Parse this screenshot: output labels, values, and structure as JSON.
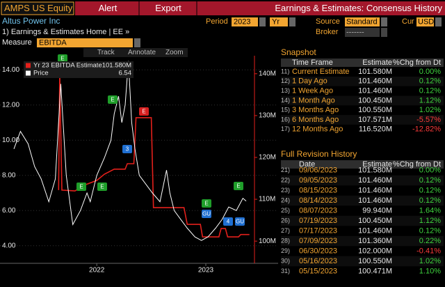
{
  "header": {
    "ticker": "AMPS US Equity",
    "tabs": [
      "Alert",
      "Export"
    ],
    "title": "Earnings & Estimates: Consensus History"
  },
  "controls": {
    "company": "Altus Power Inc",
    "period_label": "Period",
    "period": "2023",
    "period_type": "Yr",
    "source_label": "Source",
    "source": "Standard",
    "cur_label": "Cur",
    "cur": "USD",
    "link": "1) Earnings & Estimates Home | EE »",
    "broker_label": "Broker",
    "broker": "-------",
    "measure_label": "Measure",
    "measure": "EBITDA"
  },
  "toolbar": [
    "Track",
    "Annotate",
    "Zoom"
  ],
  "chart_data": {
    "type": "line",
    "grid": true,
    "xlim": [
      2021.74,
      2023.94
    ],
    "xticks": [
      {
        "value": 2022.5,
        "label": "2022"
      },
      {
        "value": 2023.5,
        "label": "2023"
      }
    ],
    "ylim": [
      3,
      14.8
    ],
    "yticks": [
      {
        "value": 4,
        "label": "4.00"
      },
      {
        "value": 6,
        "label": "6.00"
      },
      {
        "value": 8,
        "label": "8.00"
      },
      {
        "value": 10,
        "label": "10.00"
      },
      {
        "value": 12,
        "label": "12.00"
      },
      {
        "value": 14,
        "label": "14.00"
      }
    ],
    "y2lim": [
      94.7,
      144.3
    ],
    "y2ticks": [
      {
        "value": 100,
        "label": "100M"
      },
      {
        "value": 110,
        "label": "110M"
      },
      {
        "value": 120,
        "label": "120M"
      },
      {
        "value": 130,
        "label": "130M"
      },
      {
        "value": 140,
        "label": "140M"
      }
    ],
    "series": [
      {
        "name": "Yr 23 EBITDA Estimate",
        "last_label": "101.580M",
        "color": "#e3201b",
        "axis": "y2",
        "x": [
          2022.15,
          2022.16,
          2022.18,
          2022.3,
          2022.4,
          2022.5,
          2022.57,
          2022.66,
          2022.76,
          2022.78,
          2022.84,
          2022.86,
          2023.0,
          2023.02,
          2023.3,
          2023.33,
          2023.45,
          2023.47,
          2023.62,
          2023.64,
          2023.68,
          2023.7,
          2023.8,
          2023.82,
          2023.9
        ],
        "values": [
          112.2,
          140,
          112.2,
          112,
          113.5,
          114.5,
          116,
          117.2,
          117.2,
          118.5,
          118.5,
          129.5,
          129.5,
          108,
          108,
          104,
          104,
          101,
          101,
          103,
          103,
          101,
          101,
          101.58,
          101.58
        ]
      },
      {
        "name": "Price",
        "last_label": "6.54",
        "color": "#ffffff",
        "x": [
          2021.74,
          2021.8,
          2021.87,
          2021.93,
          2021.99,
          2022.06,
          2022.12,
          2022.17,
          2022.22,
          2022.28,
          2022.35,
          2022.41,
          2022.44,
          2022.5,
          2022.57,
          2022.63,
          2022.66,
          2022.7,
          2022.73,
          2022.76,
          2022.79,
          2022.82,
          2022.85,
          2022.89,
          2022.95,
          2023.01,
          2023.08,
          2023.14,
          2023.17,
          2023.21,
          2023.27,
          2023.33,
          2023.4,
          2023.46,
          2023.52,
          2023.59,
          2023.65,
          2023.71,
          2023.78,
          2023.84,
          2023.87
        ],
        "values": [
          9.5,
          10.5,
          9.8,
          8.5,
          7.8,
          6.5,
          7.8,
          13.2,
          8,
          5.2,
          6,
          7,
          6.5,
          8,
          9,
          10,
          11.5,
          12.5,
          11,
          12,
          14.5,
          11,
          9.5,
          8,
          7.5,
          7,
          6.5,
          8.3,
          7,
          6,
          5.5,
          5,
          4.5,
          4.3,
          4.5,
          5,
          5.5,
          6.2,
          6,
          6.7,
          6.54
        ]
      }
    ]
  },
  "event_markers": [
    {
      "label": "E",
      "color": "#1f9e2a"
    },
    {
      "label": "E",
      "color": "#1f9e2a"
    },
    {
      "label": "3",
      "color": "#1f6fd1"
    },
    {
      "label": "E",
      "color": "#d62020"
    },
    {
      "label": "E",
      "color": "#1f9e2a"
    },
    {
      "label": "E",
      "color": "#1f9e2a"
    },
    {
      "label": "E",
      "color": "#1f9e2a"
    },
    {
      "label": "GU",
      "color": "#1f6fd1"
    },
    {
      "label": "E",
      "color": "#1f9e2a"
    },
    {
      "label": "4",
      "color": "#1f6fd1"
    },
    {
      "label": "GU",
      "color": "#1f6fd1"
    }
  ],
  "snapshot": {
    "title": "Snapshot",
    "columns": [
      "Time Frame",
      "Estimate",
      "%Chg from Dt"
    ],
    "rows": [
      [
        "11)",
        "Current Estimate",
        "101.580M",
        "0.00%"
      ],
      [
        "12)",
        "1 Day Ago",
        "101.460M",
        "0.12%"
      ],
      [
        "13)",
        "1 Week Ago",
        "101.460M",
        "0.12%"
      ],
      [
        "14)",
        "1 Month Ago",
        "100.450M",
        "1.12%"
      ],
      [
        "15)",
        "3 Months Ago",
        "100.550M",
        "1.02%"
      ],
      [
        "16)",
        "6 Months Ago",
        "107.571M",
        "-5.57%"
      ],
      [
        "17)",
        "12 Months Ago",
        "116.520M",
        "-12.82%"
      ]
    ]
  },
  "revisions": {
    "title": "Full Revision History",
    "columns": [
      "Date",
      "Estimate",
      "%Chg from Dt"
    ],
    "rows": [
      [
        "21)",
        "09/06/2023",
        "101.580M",
        "0.00%"
      ],
      [
        "22)",
        "09/05/2023",
        "101.460M",
        "0.12%"
      ],
      [
        "23)",
        "08/15/2023",
        "101.460M",
        "0.12%"
      ],
      [
        "24)",
        "08/14/2023",
        "101.460M",
        "0.12%"
      ],
      [
        "25)",
        "08/07/2023",
        "99.940M",
        "1.64%"
      ],
      [
        "26)",
        "07/19/2023",
        "100.450M",
        "1.12%"
      ],
      [
        "27)",
        "07/17/2023",
        "101.460M",
        "0.12%"
      ],
      [
        "28)",
        "07/09/2023",
        "101.360M",
        "0.22%"
      ],
      [
        "29)",
        "06/30/2023",
        "102.000M",
        "-0.41%"
      ],
      [
        "30)",
        "05/16/2023",
        "100.550M",
        "1.02%"
      ],
      [
        "31)",
        "05/15/2023",
        "100.471M",
        "1.10%"
      ]
    ]
  }
}
